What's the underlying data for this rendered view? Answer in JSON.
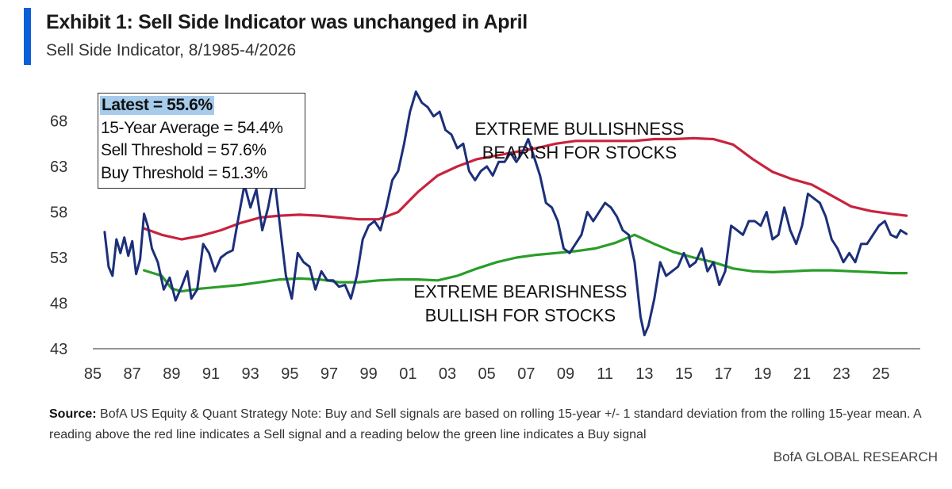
{
  "header": {
    "title": "Exhibit 1: Sell Side Indicator was unchanged in April",
    "subtitle": "Sell Side Indicator, 8/1985-4/2026"
  },
  "legend": {
    "latest": "Latest = 55.6%",
    "average": "15-Year Average = 54.4%",
    "sell": "Sell Threshold = 57.6%",
    "buy": "Buy Threshold = 51.3%"
  },
  "footer": {
    "source_label": "Source:",
    "source_text": "BofA US Equity & Quant Strategy Note: Buy and Sell signals are based on rolling 15-year +/- 1 standard deviation from the rolling 15-year mean. A reading above the red line indicates a Sell signal and a reading below the green line indicates a Buy signal",
    "brand": "BofA GLOBAL RESEARCH"
  },
  "chart_data": {
    "type": "line",
    "title": "Exhibit 1: Sell Side Indicator was unchanged in April",
    "subtitle": "Sell Side Indicator, 8/1985-4/2026",
    "xlabel": "",
    "ylabel": "",
    "xlim": [
      1985,
      2027
    ],
    "ylim": [
      43,
      71
    ],
    "yticks": [
      43,
      48,
      53,
      58,
      63,
      68
    ],
    "xticks": [
      1985,
      1987,
      1989,
      1991,
      1993,
      1995,
      1997,
      1999,
      2001,
      2003,
      2005,
      2007,
      2009,
      2011,
      2013,
      2015,
      2017,
      2019,
      2021,
      2023,
      2025
    ],
    "xtick_labels": [
      "85",
      "87",
      "89",
      "91",
      "93",
      "95",
      "97",
      "99",
      "01",
      "03",
      "05",
      "07",
      "09",
      "11",
      "13",
      "15",
      "17",
      "19",
      "21",
      "23",
      "25"
    ],
    "grid": false,
    "annotations": [
      {
        "lines": [
          "EXTREME BULLISHNESS",
          "BEARISH FOR STOCKS"
        ],
        "x": 2009.7,
        "y": 66.5
      },
      {
        "lines": [
          "EXTREME BEARISHNESS",
          "BULLISH FOR STOCKS"
        ],
        "x": 2006.7,
        "y": 48.6
      }
    ],
    "series": [
      {
        "color": "#1c2f7a",
        "x": [
          1985.6,
          1985.8,
          1986.0,
          1986.2,
          1986.4,
          1986.6,
          1986.8,
          1987.0,
          1987.2,
          1987.4,
          1987.6,
          1987.8,
          1988.0,
          1988.3,
          1988.6,
          1988.9,
          1989.2,
          1989.5,
          1989.8,
          1990.0,
          1990.3,
          1990.6,
          1990.9,
          1991.2,
          1991.5,
          1991.8,
          1992.1,
          1992.4,
          1992.7,
          1993.0,
          1993.3,
          1993.6,
          1993.9,
          1994.2,
          1994.5,
          1994.8,
          1995.1,
          1995.4,
          1995.7,
          1996.0,
          1996.3,
          1996.6,
          1996.9,
          1997.2,
          1997.5,
          1997.8,
          1998.1,
          1998.4,
          1998.7,
          1999.0,
          1999.3,
          1999.6,
          1999.9,
          2000.2,
          2000.5,
          2000.8,
          2001.1,
          2001.4,
          2001.7,
          2002.0,
          2002.3,
          2002.6,
          2002.9,
          2003.2,
          2003.5,
          2003.8,
          2004.1,
          2004.4,
          2004.7,
          2005.0,
          2005.3,
          2005.6,
          2005.9,
          2006.2,
          2006.5,
          2006.8,
          2007.1,
          2007.4,
          2007.7,
          2008.0,
          2008.3,
          2008.6,
          2008.9,
          2009.2,
          2009.5,
          2009.8,
          2010.1,
          2010.4,
          2010.7,
          2011.0,
          2011.3,
          2011.6,
          2011.9,
          2012.2,
          2012.5,
          2012.8,
          2013.0,
          2013.2,
          2013.5,
          2013.8,
          2014.1,
          2014.4,
          2014.7,
          2015.0,
          2015.3,
          2015.6,
          2015.9,
          2016.2,
          2016.5,
          2016.8,
          2017.1,
          2017.4,
          2017.7,
          2018.0,
          2018.3,
          2018.6,
          2018.9,
          2019.2,
          2019.5,
          2019.8,
          2020.1,
          2020.4,
          2020.7,
          2021.0,
          2021.3,
          2021.6,
          2021.9,
          2022.2,
          2022.5,
          2022.8,
          2023.1,
          2023.4,
          2023.7,
          2024.0,
          2024.3,
          2024.6,
          2024.9,
          2025.2,
          2025.5,
          2025.8,
          2026.0,
          2026.3
        ],
        "values": [
          55.8,
          52.0,
          51.0,
          55.0,
          53.5,
          55.2,
          53.2,
          54.8,
          51.2,
          52.8,
          57.8,
          56.4,
          54.0,
          52.5,
          49.5,
          50.8,
          48.3,
          49.8,
          51.5,
          48.5,
          49.5,
          54.5,
          53.5,
          51.5,
          53.0,
          53.5,
          53.8,
          57.5,
          61.0,
          58.5,
          60.5,
          56.0,
          58.5,
          62.0,
          56.5,
          51.0,
          48.5,
          53.5,
          52.5,
          52.0,
          49.5,
          51.5,
          50.5,
          50.5,
          49.8,
          50.0,
          48.5,
          51.0,
          55.0,
          56.5,
          57.0,
          56.0,
          58.5,
          61.5,
          62.5,
          65.5,
          69.0,
          71.2,
          70.0,
          69.5,
          68.5,
          69.0,
          67.0,
          66.5,
          65.0,
          65.5,
          62.5,
          61.5,
          62.5,
          63.0,
          62.0,
          63.5,
          63.5,
          64.5,
          63.5,
          64.5,
          66.0,
          64.0,
          62.0,
          59.0,
          58.5,
          57.0,
          54.0,
          53.5,
          54.5,
          55.5,
          58.0,
          57.0,
          58.0,
          59.0,
          58.5,
          57.5,
          56.0,
          55.5,
          52.5,
          46.5,
          44.5,
          45.5,
          48.5,
          52.5,
          51.0,
          51.5,
          52.0,
          53.5,
          52.0,
          52.5,
          54.0,
          51.5,
          52.5,
          50.0,
          51.5,
          56.5,
          56.0,
          55.5,
          57.0,
          57.0,
          56.5,
          58.0,
          55.0,
          55.5,
          58.5,
          56.0,
          54.5,
          56.5,
          60.0,
          59.5,
          59.0,
          57.5,
          55.0,
          54.0,
          52.5,
          53.5,
          52.5,
          54.5,
          54.5,
          55.5,
          56.5,
          57.0,
          55.5,
          55.2,
          56.0,
          55.6
        ]
      },
      {
        "color": "#c8233f",
        "x": [
          1987.6,
          1988.5,
          1989.5,
          1990.5,
          1991.5,
          1992.5,
          1993.5,
          1994.5,
          1995.5,
          1996.5,
          1997.5,
          1998.5,
          1999.5,
          2000.5,
          2001.5,
          2002.5,
          2003.5,
          2004.5,
          2005.5,
          2006.5,
          2007.5,
          2008.5,
          2009.5,
          2010.5,
          2011.5,
          2012.5,
          2013.5,
          2014.5,
          2015.5,
          2016.5,
          2017.5,
          2018.5,
          2019.5,
          2020.5,
          2021.5,
          2022.5,
          2023.5,
          2024.5,
          2025.5,
          2026.3
        ],
        "values": [
          56.2,
          55.5,
          55.0,
          55.4,
          56.0,
          56.8,
          57.4,
          57.6,
          57.7,
          57.6,
          57.4,
          57.2,
          57.2,
          58.0,
          60.2,
          62.0,
          63.0,
          63.8,
          64.2,
          64.6,
          65.0,
          65.5,
          65.8,
          65.8,
          65.8,
          65.8,
          66.0,
          66.0,
          66.1,
          66.0,
          65.4,
          63.8,
          62.4,
          61.6,
          61.0,
          59.8,
          58.6,
          58.1,
          57.8,
          57.6
        ]
      },
      {
        "color": "#2a9d2a",
        "x": [
          1987.6,
          1988.5,
          1989.0,
          1989.5,
          1990.5,
          1991.5,
          1992.5,
          1993.5,
          1994.5,
          1995.5,
          1996.5,
          1997.5,
          1998.5,
          1999.5,
          2000.5,
          2001.5,
          2002.5,
          2003.5,
          2004.5,
          2005.5,
          2006.5,
          2007.5,
          2008.5,
          2009.5,
          2010.5,
          2011.5,
          2012.5,
          2013.5,
          2014.5,
          2015.5,
          2016.5,
          2017.5,
          2018.5,
          2019.5,
          2020.5,
          2021.5,
          2022.5,
          2023.5,
          2024.5,
          2025.5,
          2026.3
        ],
        "values": [
          51.6,
          51.0,
          49.6,
          49.3,
          49.6,
          49.8,
          50.0,
          50.3,
          50.6,
          50.7,
          50.6,
          50.3,
          50.3,
          50.5,
          50.6,
          50.6,
          50.5,
          51.0,
          51.8,
          52.5,
          53.0,
          53.3,
          53.5,
          53.7,
          54.0,
          54.6,
          55.5,
          54.5,
          53.6,
          53.0,
          52.5,
          51.8,
          51.5,
          51.4,
          51.5,
          51.6,
          51.6,
          51.5,
          51.4,
          51.3,
          51.3
        ]
      }
    ]
  }
}
